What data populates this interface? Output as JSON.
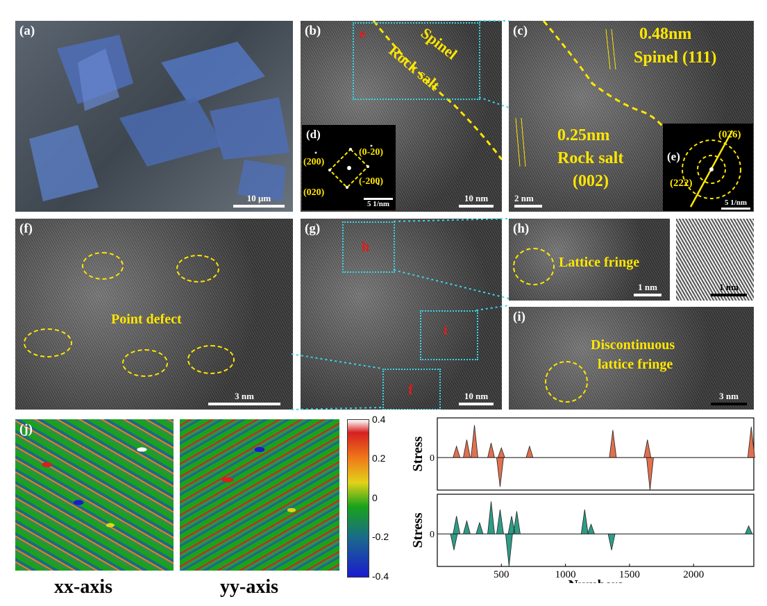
{
  "panels": {
    "a": {
      "label": "(a)",
      "scale": "10 μm"
    },
    "b": {
      "label": "(b)",
      "scale": "10 nm",
      "region": "e",
      "spinel": "Spinel",
      "rocksalt": "Rock salt"
    },
    "c": {
      "label": "(c)",
      "scale": "2 nm",
      "d1": "0.48nm",
      "p1": "Spinel (111)",
      "d2": "0.25nm",
      "p2a": "Rock salt",
      "p2b": "(002)"
    },
    "d": {
      "label": "(d)",
      "scale": "5 1/nm",
      "s1": "(200)",
      "s2": "(0-20)",
      "s3": "(020)",
      "s4": "(-200)"
    },
    "e": {
      "label": "(e)",
      "scale": "5 1/nm",
      "s1": "(026)",
      "s2": "(222)"
    },
    "f": {
      "label": "(f)",
      "scale": "3 nm",
      "text": "Point defect"
    },
    "g": {
      "label": "(g)",
      "scale": "10 nm",
      "r1": "h",
      "r2": "i",
      "r3": "f"
    },
    "h": {
      "label": "(h)",
      "scale": "1 nm",
      "scale2": "1 nm",
      "text": "Lattice fringe"
    },
    "i": {
      "label": "(i)",
      "scale": "3 nm",
      "text1": "Discontinuous",
      "text2": "lattice fringe"
    },
    "j": {
      "label": "(j)",
      "xx": "xx-axis",
      "yy": "yy-axis"
    }
  },
  "colorbar": {
    "ticks": [
      "0.4",
      "0.2",
      "0",
      "-0.2",
      "-0.4"
    ],
    "colors": [
      "#d62020",
      "#f07d1a",
      "#e2d21a",
      "#1aa31a",
      "#1a6a8a",
      "#1a1ad0"
    ]
  },
  "chart_data": {
    "type": "area",
    "xlabel": "Numbers",
    "xticks": [
      500,
      1000,
      1500,
      2000
    ],
    "xlim": [
      0,
      2470
    ],
    "series": [
      {
        "ylabel": "Stress",
        "zero_label": "0",
        "color": "#e0704f",
        "spikes": [
          [
            150,
            0.35
          ],
          [
            230,
            0.55
          ],
          [
            290,
            1.0
          ],
          [
            420,
            0.45
          ],
          [
            490,
            -0.9
          ],
          [
            500,
            0.3
          ],
          [
            720,
            0.35
          ],
          [
            1370,
            0.85
          ],
          [
            1660,
            -1.0
          ],
          [
            1640,
            0.55
          ],
          [
            2450,
            0.95
          ]
        ]
      },
      {
        "ylabel": "Stress",
        "zero_label": "0",
        "color": "#2f9c86",
        "spikes": [
          [
            130,
            -0.5
          ],
          [
            150,
            0.55
          ],
          [
            230,
            0.4
          ],
          [
            330,
            0.35
          ],
          [
            420,
            1.0
          ],
          [
            490,
            0.75
          ],
          [
            560,
            -1.0
          ],
          [
            580,
            0.55
          ],
          [
            620,
            0.7
          ],
          [
            1150,
            0.75
          ],
          [
            1360,
            -0.5
          ],
          [
            1200,
            0.3
          ],
          [
            2430,
            0.25
          ]
        ]
      }
    ]
  }
}
